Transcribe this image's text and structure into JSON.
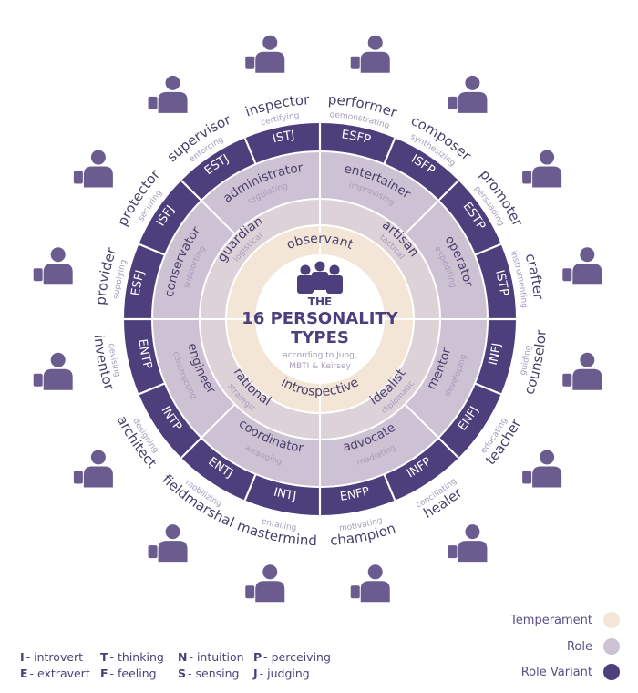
{
  "center": {
    "title_line1": "THE",
    "title_line2": "16 PERSONALITY",
    "title_line3": "TYPES",
    "subtitle_line1": "according to Jung,",
    "subtitle_line2": "MBTI & Keirsey"
  },
  "temperaments": [
    {
      "name": "observant"
    },
    {
      "name": "introspective"
    }
  ],
  "roles": [
    {
      "name": "artisan",
      "trait": "tactical"
    },
    {
      "name": "idealist",
      "trait": "diplomatic"
    },
    {
      "name": "rational",
      "trait": "strategic"
    },
    {
      "name": "guardian",
      "trait": "logistical"
    }
  ],
  "role_variants": [
    {
      "name": "entertainer",
      "verb": "improvising"
    },
    {
      "name": "operator",
      "verb": "expediting"
    },
    {
      "name": "mentor",
      "verb": "developing"
    },
    {
      "name": "advocate",
      "verb": "mediating"
    },
    {
      "name": "coordinator",
      "verb": "arranging"
    },
    {
      "name": "engineer",
      "verb": "constructing"
    },
    {
      "name": "conservator",
      "verb": "supporting"
    },
    {
      "name": "administrator",
      "verb": "regulating"
    }
  ],
  "types": [
    {
      "code": "ESFP",
      "name": "performer",
      "verb": "demonstrating",
      "icon": "performer-icon"
    },
    {
      "code": "ISFP",
      "name": "composer",
      "verb": "synthesizing",
      "icon": "composer-icon"
    },
    {
      "code": "ESTP",
      "name": "promoter",
      "verb": "persuading",
      "icon": "promoter-icon"
    },
    {
      "code": "ISTP",
      "name": "crafter",
      "verb": "instrumenting",
      "icon": "crafter-icon"
    },
    {
      "code": "INFJ",
      "name": "counselor",
      "verb": "guiding",
      "icon": "counselor-icon"
    },
    {
      "code": "ENFJ",
      "name": "teacher",
      "verb": "educating",
      "icon": "teacher-icon"
    },
    {
      "code": "INFP",
      "name": "healer",
      "verb": "conciliating",
      "icon": "healer-icon"
    },
    {
      "code": "ENFP",
      "name": "champion",
      "verb": "motivating",
      "icon": "champion-icon"
    },
    {
      "code": "INTJ",
      "name": "mastermind",
      "verb": "entailing",
      "icon": "mastermind-icon"
    },
    {
      "code": "ENTJ",
      "name": "fieldmarshal",
      "verb": "mobilizing",
      "icon": "fieldmarshal-icon"
    },
    {
      "code": "INTP",
      "name": "architect",
      "verb": "designing",
      "icon": "architect-icon"
    },
    {
      "code": "ENTP",
      "name": "inventor",
      "verb": "devising",
      "icon": "inventor-icon"
    },
    {
      "code": "ESFJ",
      "name": "provider",
      "verb": "supplying",
      "icon": "provider-icon"
    },
    {
      "code": "ISFJ",
      "name": "protector",
      "verb": "securing",
      "icon": "protector-icon"
    },
    {
      "code": "ESTJ",
      "name": "supervisor",
      "verb": "enforcing",
      "icon": "supervisor-icon"
    },
    {
      "code": "ISTJ",
      "name": "inspector",
      "verb": "certifying",
      "icon": "inspector-icon"
    }
  ],
  "legend": [
    {
      "label": "Temperament",
      "color": "#f3e6d6"
    },
    {
      "label": "Role",
      "color": "#cdc2d4"
    },
    {
      "label": "Role Variant",
      "color": "#4c3f7c"
    }
  ],
  "key": [
    {
      "letter": "I",
      "text": "- introvert"
    },
    {
      "letter": "E",
      "text": "- extravert"
    },
    {
      "letter": "T",
      "text": "- thinking"
    },
    {
      "letter": "F",
      "text": "- feeling"
    },
    {
      "letter": "N",
      "text": "- intuition"
    },
    {
      "letter": "S",
      "text": "- sensing"
    },
    {
      "letter": "P",
      "text": "- perceiving"
    },
    {
      "letter": "J",
      "text": "- judging"
    }
  ],
  "colors": {
    "dark": "#4c3f7c",
    "role": "#cdc2d4",
    "temperament": "#f3e6d6",
    "text": "#4a3f6b",
    "muted": "#a79bbb",
    "icon": "#6a5c8f"
  }
}
